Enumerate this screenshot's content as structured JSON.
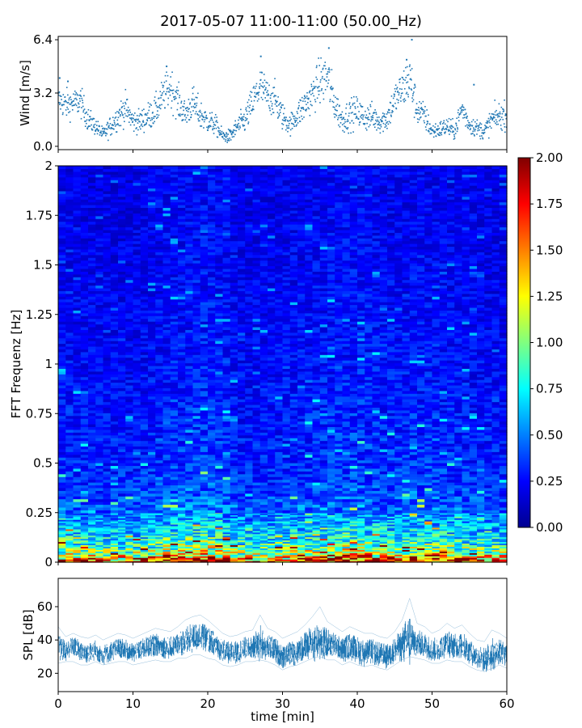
{
  "title": "2017-05-07 11:00-11:00 (50.00_Hz)",
  "chart_data": [
    {
      "type": "scatter",
      "panel": "wind",
      "ylabel": "Wind [m/s]",
      "xlabel": "",
      "xlim": [
        0,
        60
      ],
      "ylim": [
        -0.2,
        6.6
      ],
      "yticks": [
        "0.0",
        "3.2",
        "6.4"
      ],
      "ytick_values": [
        0.0,
        3.2,
        6.4
      ],
      "grid": false,
      "marker_color": "#1f77b4",
      "envelope": {
        "x": [
          0,
          1,
          2,
          3,
          4,
          5,
          6,
          7,
          8,
          9,
          10,
          11,
          12,
          13,
          14,
          15,
          16,
          17,
          18,
          19,
          20,
          21,
          22,
          23,
          24,
          25,
          26,
          27,
          28,
          29,
          30,
          31,
          32,
          33,
          34,
          35,
          36,
          37,
          38,
          39,
          40,
          41,
          42,
          43,
          44,
          45,
          46,
          47,
          48,
          49,
          50,
          51,
          52,
          53,
          54,
          55,
          56,
          57,
          58,
          59,
          60
        ],
        "y": [
          2.8,
          2.5,
          2.6,
          2.7,
          1.6,
          1.2,
          0.7,
          1.2,
          1.8,
          2.3,
          1.5,
          1.5,
          1.8,
          2.1,
          3.0,
          3.6,
          2.7,
          1.9,
          2.6,
          1.9,
          1.5,
          1.3,
          0.6,
          0.6,
          1.2,
          1.6,
          2.6,
          3.6,
          3.0,
          2.8,
          1.8,
          1.3,
          1.9,
          2.5,
          3.1,
          3.9,
          4.2,
          2.5,
          1.6,
          1.9,
          2.1,
          1.7,
          1.8,
          1.5,
          1.7,
          2.8,
          3.4,
          4.1,
          2.2,
          1.8,
          0.9,
          1.0,
          1.2,
          0.9,
          2.3,
          1.3,
          1.1,
          0.9,
          1.6,
          1.8,
          1.9
        ],
        "spread": [
          0.8,
          0.9,
          0.8,
          0.9,
          0.7,
          0.5,
          0.4,
          0.6,
          0.8,
          0.9,
          0.7,
          0.7,
          0.8,
          0.9,
          1.0,
          1.2,
          1.0,
          0.8,
          1.0,
          0.9,
          0.7,
          0.6,
          0.4,
          0.4,
          0.6,
          0.8,
          1.0,
          1.3,
          1.0,
          1.0,
          0.8,
          0.6,
          0.8,
          1.0,
          1.0,
          1.4,
          1.6,
          1.0,
          0.8,
          0.9,
          0.9,
          0.8,
          0.8,
          0.7,
          0.8,
          1.0,
          1.2,
          1.6,
          0.9,
          0.8,
          0.5,
          0.5,
          0.6,
          0.5,
          0.8,
          0.6,
          0.5,
          0.5,
          0.7,
          0.8,
          0.8
        ]
      },
      "outliers": {
        "x": [
          0.2,
          1.3,
          14.5,
          27.1,
          36.2,
          46.6,
          47.3,
          55.6
        ],
        "y": [
          4.1,
          3.9,
          4.8,
          5.4,
          5.9,
          5.2,
          6.4,
          3.7
        ]
      }
    },
    {
      "type": "heatmap",
      "panel": "spectrum",
      "ylabel": "FFT Frequenz [Hz]",
      "xlabel": "",
      "xlim": [
        0,
        60
      ],
      "ylim": [
        0,
        2
      ],
      "yticks": [
        "0",
        "0.25",
        "0.5",
        "0.75",
        "1",
        "1.25",
        "1.5",
        "1.75",
        "2"
      ],
      "ytick_values": [
        0,
        0.25,
        0.5,
        0.75,
        1,
        1.25,
        1.5,
        1.75,
        2
      ],
      "colormap": "jet",
      "colorbar": {
        "vmin": 0.0,
        "vmax": 2.0,
        "ticks": [
          "0.00",
          "0.25",
          "0.50",
          "0.75",
          "1.00",
          "1.25",
          "1.50",
          "1.75",
          "2.00"
        ],
        "tick_values": [
          0.0,
          0.25,
          0.5,
          0.75,
          1.0,
          1.25,
          1.5,
          1.75,
          2.0
        ]
      },
      "frequency_profile": {
        "freq": [
          0,
          0.02,
          0.05,
          0.1,
          0.15,
          0.2,
          0.25,
          0.3,
          0.4,
          0.5,
          0.75,
          1.0,
          1.5,
          2.0
        ],
        "mean_value": [
          1.9,
          1.5,
          1.1,
          0.85,
          0.7,
          0.6,
          0.5,
          0.42,
          0.36,
          0.33,
          0.3,
          0.27,
          0.24,
          0.22
        ]
      },
      "time_modulation": {
        "x": [
          0,
          5,
          10,
          15,
          20,
          25,
          30,
          35,
          40,
          45,
          50,
          55,
          60
        ],
        "factor": [
          1.0,
          0.9,
          0.9,
          1.05,
          1.15,
          0.9,
          0.95,
          1.05,
          1.1,
          1.0,
          1.05,
          0.95,
          0.9
        ]
      }
    },
    {
      "type": "area",
      "panel": "spl",
      "ylabel": "SPL [dB]",
      "xlabel": "time [min]",
      "xlim": [
        0,
        60
      ],
      "ylim": [
        9,
        77
      ],
      "yticks": [
        "20",
        "40",
        "60"
      ],
      "ytick_values": [
        20,
        40,
        60
      ],
      "xticks": [
        "0",
        "10",
        "20",
        "30",
        "40",
        "50",
        "60"
      ],
      "xtick_values": [
        0,
        10,
        20,
        30,
        40,
        50,
        60
      ],
      "grid": false,
      "line_color": "#1f77b4",
      "series": [
        {
          "x": [
            0,
            1,
            2,
            3,
            4,
            5,
            6,
            7,
            8,
            9,
            10,
            11,
            12,
            13,
            14,
            15,
            16,
            17,
            18,
            19,
            20,
            21,
            22,
            23,
            24,
            25,
            26,
            27,
            28,
            29,
            30,
            31,
            32,
            33,
            34,
            35,
            36,
            37,
            38,
            39,
            40,
            41,
            42,
            43,
            44,
            45,
            46,
            47,
            48,
            49,
            50,
            51,
            52,
            53,
            54,
            55,
            56,
            57,
            58,
            59,
            60
          ],
          "center": [
            36,
            33,
            37,
            33,
            32,
            34,
            31,
            33,
            35,
            34,
            32,
            34,
            36,
            37,
            36,
            35,
            38,
            39,
            41,
            43,
            40,
            37,
            34,
            32,
            33,
            35,
            36,
            38,
            36,
            34,
            30,
            32,
            33,
            36,
            38,
            40,
            38,
            37,
            34,
            36,
            34,
            32,
            33,
            31,
            30,
            34,
            37,
            40,
            38,
            37,
            34,
            35,
            38,
            36,
            37,
            33,
            30,
            28,
            31,
            33,
            31
          ],
          "band_low": [
            26,
            27,
            27,
            25,
            25,
            27,
            25,
            26,
            27,
            27,
            25,
            26,
            27,
            28,
            27,
            27,
            29,
            29,
            31,
            31,
            29,
            28,
            25,
            24,
            25,
            27,
            27,
            28,
            27,
            25,
            22,
            24,
            25,
            27,
            29,
            30,
            28,
            28,
            25,
            27,
            25,
            24,
            25,
            23,
            22,
            25,
            28,
            30,
            29,
            28,
            26,
            26,
            28,
            27,
            27,
            24,
            22,
            21,
            23,
            25,
            23
          ],
          "band_high": [
            48,
            42,
            44,
            42,
            41,
            43,
            40,
            42,
            44,
            43,
            41,
            43,
            45,
            47,
            46,
            45,
            48,
            52,
            54,
            55,
            52,
            48,
            44,
            42,
            43,
            45,
            46,
            55,
            47,
            45,
            41,
            43,
            45,
            49,
            54,
            60,
            51,
            48,
            45,
            48,
            46,
            44,
            44,
            42,
            41,
            45,
            52,
            65,
            50,
            48,
            44,
            46,
            50,
            47,
            49,
            44,
            40,
            39,
            46,
            44,
            41
          ]
        }
      ]
    }
  ]
}
